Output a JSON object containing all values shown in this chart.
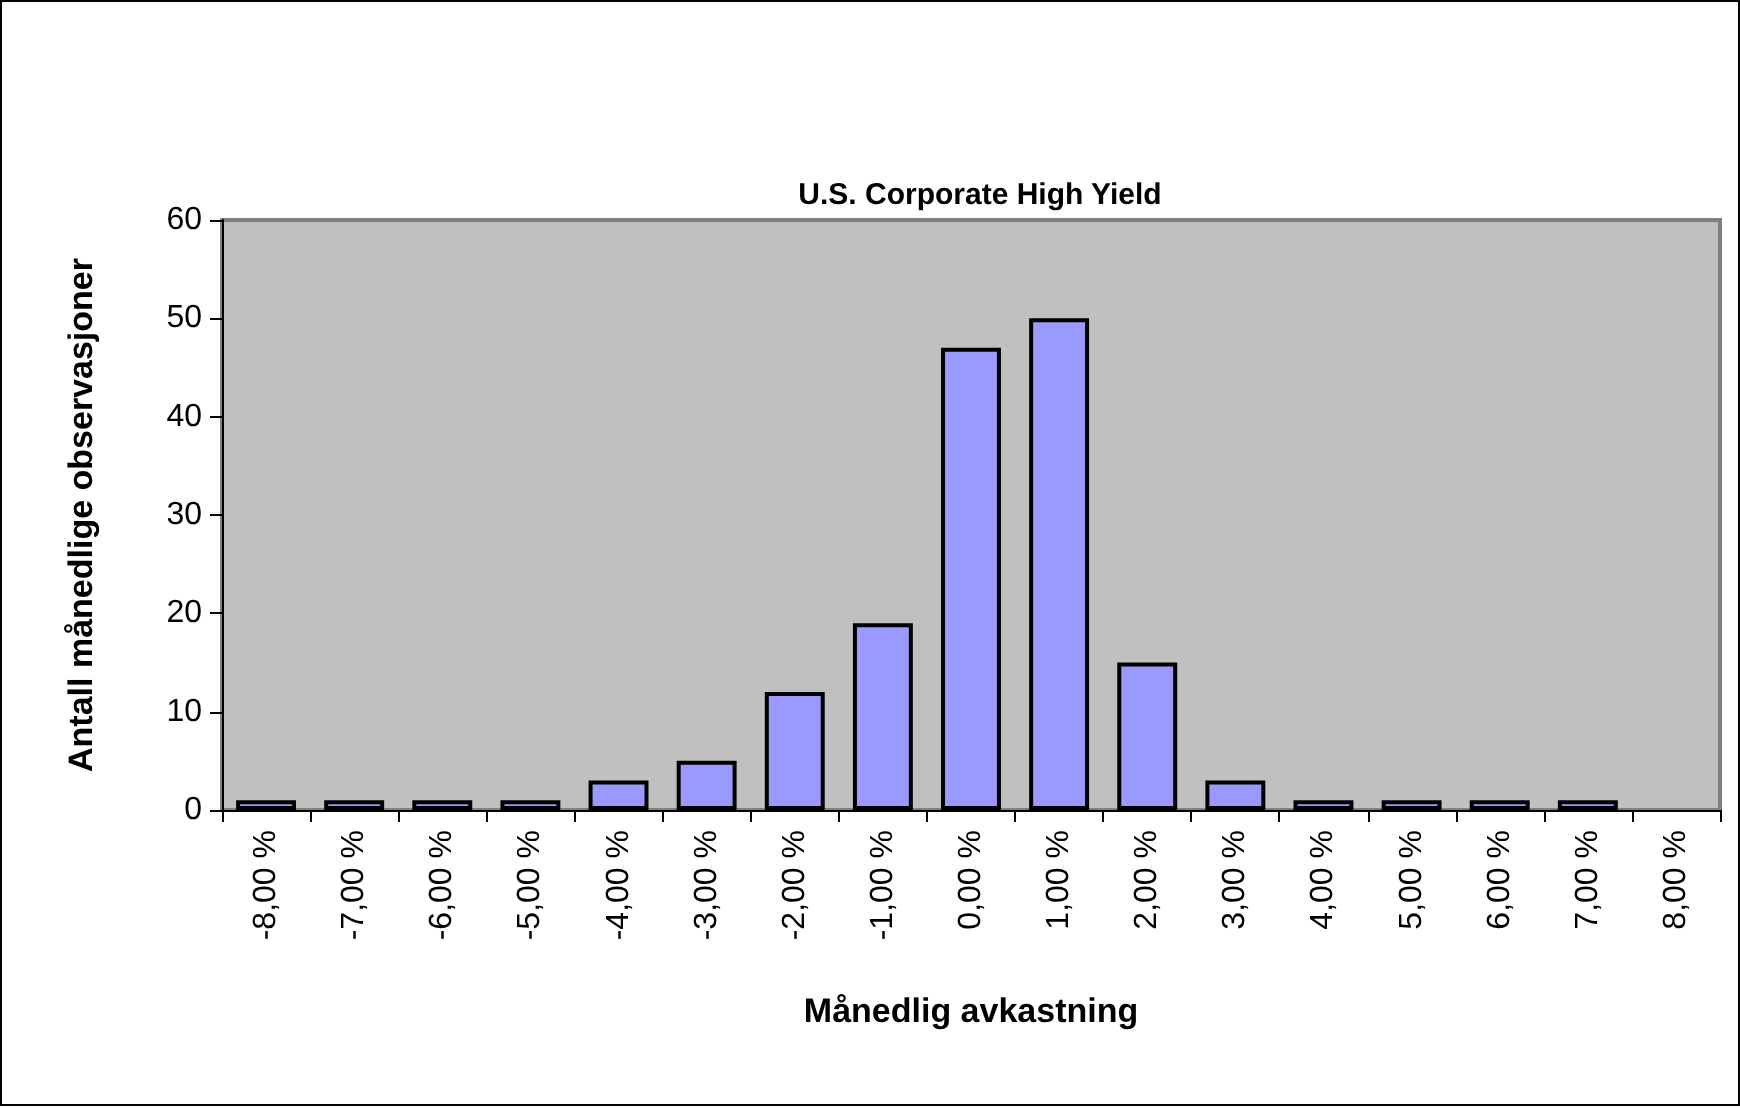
{
  "chart_data": {
    "type": "bar",
    "title": "U.S. Corporate High Yield",
    "xlabel": "Månedlig avkastning",
    "ylabel": "Antall månedlige observasjoner",
    "categories": [
      "-8,00 %",
      "-7,00 %",
      "-6,00 %",
      "-5,00 %",
      "-4,00 %",
      "-3,00 %",
      "-2,00 %",
      "-1,00 %",
      "0,00 %",
      "1,00 %",
      "2,00 %",
      "3,00 %",
      "4,00 %",
      "5,00 %",
      "6,00 %",
      "7,00 %",
      "8,00 %"
    ],
    "values": [
      1,
      1,
      1,
      1,
      3,
      5,
      12,
      19,
      47,
      50,
      15,
      3,
      1,
      1,
      1,
      1,
      0
    ],
    "color": "#9999ff",
    "ylim": [
      0,
      60
    ],
    "yticks": [
      0,
      10,
      20,
      30,
      40,
      50,
      60
    ]
  }
}
